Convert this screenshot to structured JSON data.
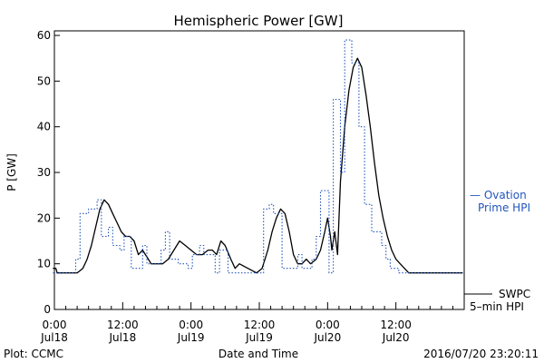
{
  "chart_data": {
    "type": "line",
    "title": "Hemispheric Power [GW]",
    "xlabel": "Date and Time",
    "ylabel": "P [GW]",
    "ylim": [
      0,
      61
    ],
    "xlim": [
      "2016-07-18 00:00",
      "2016-07-21 00:00"
    ],
    "grid": false,
    "y_ticks": [
      0,
      10,
      20,
      30,
      40,
      50,
      60
    ],
    "x_ticks": [
      {
        "x": "2016-07-18 00:00",
        "time": "0:00",
        "date": "Jul18"
      },
      {
        "x": "2016-07-18 12:00",
        "time": "12:00",
        "date": "Jul18"
      },
      {
        "x": "2016-07-19 00:00",
        "time": "0:00",
        "date": "Jul19"
      },
      {
        "x": "2016-07-19 12:00",
        "time": "12:00",
        "date": "Jul19"
      },
      {
        "x": "2016-07-20 00:00",
        "time": "0:00",
        "date": "Jul20"
      },
      {
        "x": "2016-07-20 12:00",
        "time": "12:00",
        "date": "Jul20"
      }
    ],
    "series": [
      {
        "name": "SWPC 5-min HPI",
        "color": "#000000",
        "style": "solid",
        "points": [
          [
            "2016-07-17 23:45",
            9
          ],
          [
            "2016-07-18 00:15",
            9
          ],
          [
            "2016-07-18 00:30",
            8
          ],
          [
            "2016-07-18 04:00",
            8
          ],
          [
            "2016-07-18 05:00",
            9
          ],
          [
            "2016-07-18 05:45",
            11
          ],
          [
            "2016-07-18 06:30",
            14
          ],
          [
            "2016-07-18 07:15",
            18
          ],
          [
            "2016-07-18 08:00",
            22
          ],
          [
            "2016-07-18 08:45",
            24
          ],
          [
            "2016-07-18 09:30",
            23
          ],
          [
            "2016-07-18 10:15",
            21
          ],
          [
            "2016-07-18 11:00",
            19
          ],
          [
            "2016-07-18 11:45",
            17
          ],
          [
            "2016-07-18 12:30",
            16
          ],
          [
            "2016-07-18 13:15",
            16
          ],
          [
            "2016-07-18 14:00",
            15
          ],
          [
            "2016-07-18 14:45",
            12
          ],
          [
            "2016-07-18 15:30",
            13
          ],
          [
            "2016-07-18 16:00",
            12
          ],
          [
            "2016-07-18 16:30",
            11
          ],
          [
            "2016-07-18 17:00",
            10
          ],
          [
            "2016-07-18 19:00",
            10
          ],
          [
            "2016-07-18 20:00",
            11
          ],
          [
            "2016-07-18 21:00",
            13
          ],
          [
            "2016-07-18 22:00",
            15
          ],
          [
            "2016-07-18 23:00",
            14
          ],
          [
            "2016-07-19 00:00",
            13
          ],
          [
            "2016-07-19 01:00",
            12
          ],
          [
            "2016-07-19 02:00",
            12
          ],
          [
            "2016-07-19 03:00",
            13
          ],
          [
            "2016-07-19 03:45",
            13
          ],
          [
            "2016-07-19 04:30",
            12
          ],
          [
            "2016-07-19 05:15",
            15
          ],
          [
            "2016-07-19 06:00",
            14
          ],
          [
            "2016-07-19 07:00",
            11
          ],
          [
            "2016-07-19 07:45",
            9
          ],
          [
            "2016-07-19 08:30",
            10
          ],
          [
            "2016-07-19 10:00",
            9
          ],
          [
            "2016-07-19 11:30",
            8
          ],
          [
            "2016-07-19 12:30",
            9
          ],
          [
            "2016-07-19 13:30",
            13
          ],
          [
            "2016-07-19 14:15",
            17
          ],
          [
            "2016-07-19 15:00",
            20
          ],
          [
            "2016-07-19 15:45",
            22
          ],
          [
            "2016-07-19 16:30",
            21
          ],
          [
            "2016-07-19 17:15",
            17
          ],
          [
            "2016-07-19 18:00",
            12
          ],
          [
            "2016-07-19 18:45",
            10
          ],
          [
            "2016-07-19 19:30",
            10
          ],
          [
            "2016-07-19 20:15",
            11
          ],
          [
            "2016-07-19 21:00",
            10
          ],
          [
            "2016-07-19 22:00",
            11
          ],
          [
            "2016-07-19 22:45",
            13
          ],
          [
            "2016-07-19 23:30",
            17
          ],
          [
            "2016-07-20 00:00",
            20
          ],
          [
            "2016-07-20 00:30",
            16
          ],
          [
            "2016-07-20 00:45",
            13
          ],
          [
            "2016-07-20 01:15",
            17
          ],
          [
            "2016-07-20 01:45",
            12
          ],
          [
            "2016-07-20 02:15",
            28
          ],
          [
            "2016-07-20 03:00",
            40
          ],
          [
            "2016-07-20 03:45",
            48
          ],
          [
            "2016-07-20 04:30",
            53
          ],
          [
            "2016-07-20 05:15",
            55
          ],
          [
            "2016-07-20 06:00",
            53
          ],
          [
            "2016-07-20 06:45",
            47
          ],
          [
            "2016-07-20 07:30",
            40
          ],
          [
            "2016-07-20 08:15",
            32
          ],
          [
            "2016-07-20 09:00",
            25
          ],
          [
            "2016-07-20 09:45",
            20
          ],
          [
            "2016-07-20 10:30",
            16
          ],
          [
            "2016-07-20 11:15",
            13
          ],
          [
            "2016-07-20 12:00",
            11
          ],
          [
            "2016-07-20 12:45",
            10
          ],
          [
            "2016-07-20 13:30",
            9
          ],
          [
            "2016-07-20 14:15",
            8
          ],
          [
            "2016-07-20 23:45",
            8
          ]
        ]
      },
      {
        "name": "Ovation Prime HPI",
        "color": "#2255bb",
        "style": "dotted-step",
        "points": [
          [
            "2016-07-17 23:45",
            8
          ],
          [
            "2016-07-18 03:45",
            8
          ],
          [
            "2016-07-18 03:45",
            11
          ],
          [
            "2016-07-18 04:30",
            11
          ],
          [
            "2016-07-18 04:30",
            21
          ],
          [
            "2016-07-18 06:00",
            21
          ],
          [
            "2016-07-18 06:00",
            22
          ],
          [
            "2016-07-18 07:30",
            22
          ],
          [
            "2016-07-18 07:30",
            24
          ],
          [
            "2016-07-18 08:15",
            24
          ],
          [
            "2016-07-18 08:15",
            16
          ],
          [
            "2016-07-18 09:30",
            16
          ],
          [
            "2016-07-18 09:30",
            18
          ],
          [
            "2016-07-18 10:15",
            18
          ],
          [
            "2016-07-18 10:15",
            14
          ],
          [
            "2016-07-18 11:30",
            14
          ],
          [
            "2016-07-18 11:30",
            13
          ],
          [
            "2016-07-18 12:15",
            13
          ],
          [
            "2016-07-18 12:15",
            16
          ],
          [
            "2016-07-18 13:30",
            16
          ],
          [
            "2016-07-18 13:30",
            9
          ],
          [
            "2016-07-18 15:30",
            9
          ],
          [
            "2016-07-18 15:30",
            14
          ],
          [
            "2016-07-18 16:15",
            14
          ],
          [
            "2016-07-18 16:15",
            10
          ],
          [
            "2016-07-18 18:45",
            10
          ],
          [
            "2016-07-18 18:45",
            13
          ],
          [
            "2016-07-18 19:30",
            13
          ],
          [
            "2016-07-18 19:30",
            17
          ],
          [
            "2016-07-18 20:15",
            17
          ],
          [
            "2016-07-18 20:15",
            11
          ],
          [
            "2016-07-18 21:45",
            11
          ],
          [
            "2016-07-18 21:45",
            10
          ],
          [
            "2016-07-18 23:30",
            10
          ],
          [
            "2016-07-18 23:30",
            9
          ],
          [
            "2016-07-19 00:15",
            9
          ],
          [
            "2016-07-19 00:15",
            12
          ],
          [
            "2016-07-19 01:30",
            12
          ],
          [
            "2016-07-19 01:30",
            14
          ],
          [
            "2016-07-19 02:15",
            14
          ],
          [
            "2016-07-19 02:15",
            12
          ],
          [
            "2016-07-19 04:15",
            12
          ],
          [
            "2016-07-19 04:15",
            8
          ],
          [
            "2016-07-19 05:00",
            8
          ],
          [
            "2016-07-19 05:00",
            13
          ],
          [
            "2016-07-19 06:30",
            13
          ],
          [
            "2016-07-19 06:30",
            8
          ],
          [
            "2016-07-19 12:45",
            8
          ],
          [
            "2016-07-19 12:45",
            22
          ],
          [
            "2016-07-19 13:45",
            22
          ],
          [
            "2016-07-19 13:45",
            23
          ],
          [
            "2016-07-19 14:30",
            23
          ],
          [
            "2016-07-19 14:30",
            21
          ],
          [
            "2016-07-19 16:00",
            21
          ],
          [
            "2016-07-19 16:00",
            9
          ],
          [
            "2016-07-19 18:45",
            9
          ],
          [
            "2016-07-19 18:45",
            12
          ],
          [
            "2016-07-19 19:30",
            12
          ],
          [
            "2016-07-19 19:30",
            9
          ],
          [
            "2016-07-19 21:15",
            9
          ],
          [
            "2016-07-19 21:15",
            11
          ],
          [
            "2016-07-19 22:00",
            11
          ],
          [
            "2016-07-19 22:00",
            16
          ],
          [
            "2016-07-19 22:45",
            16
          ],
          [
            "2016-07-19 22:45",
            26
          ],
          [
            "2016-07-20 00:15",
            26
          ],
          [
            "2016-07-20 00:15",
            8
          ],
          [
            "2016-07-20 01:00",
            8
          ],
          [
            "2016-07-20 01:00",
            46
          ],
          [
            "2016-07-20 02:15",
            46
          ],
          [
            "2016-07-20 02:15",
            30
          ],
          [
            "2016-07-20 03:00",
            30
          ],
          [
            "2016-07-20 03:00",
            59
          ],
          [
            "2016-07-20 04:15",
            59
          ],
          [
            "2016-07-20 04:15",
            54
          ],
          [
            "2016-07-20 05:30",
            54
          ],
          [
            "2016-07-20 05:30",
            40
          ],
          [
            "2016-07-20 06:30",
            40
          ],
          [
            "2016-07-20 06:30",
            23
          ],
          [
            "2016-07-20 07:45",
            23
          ],
          [
            "2016-07-20 07:45",
            17
          ],
          [
            "2016-07-20 09:30",
            17
          ],
          [
            "2016-07-20 09:30",
            14
          ],
          [
            "2016-07-20 10:15",
            14
          ],
          [
            "2016-07-20 10:15",
            11
          ],
          [
            "2016-07-20 11:00",
            11
          ],
          [
            "2016-07-20 11:00",
            9
          ],
          [
            "2016-07-20 12:30",
            9
          ],
          [
            "2016-07-20 12:30",
            8
          ],
          [
            "2016-07-20 23:45",
            8
          ]
        ]
      }
    ],
    "legend": [
      {
        "name": "Ovation Prime HPI",
        "line1": "— Ovation",
        "line2": "Prime HPI",
        "color": "#2255bb",
        "style": "dashed"
      },
      {
        "name": "SWPC 5-min HPI",
        "line1": "SWPC",
        "line2": "5–min HPI",
        "color": "#000000",
        "style": "solid"
      }
    ],
    "legend_position": "right"
  },
  "footer": {
    "plot_credit": "Plot: CCMC",
    "timestamp": "2016/07/20 23:20:11"
  }
}
